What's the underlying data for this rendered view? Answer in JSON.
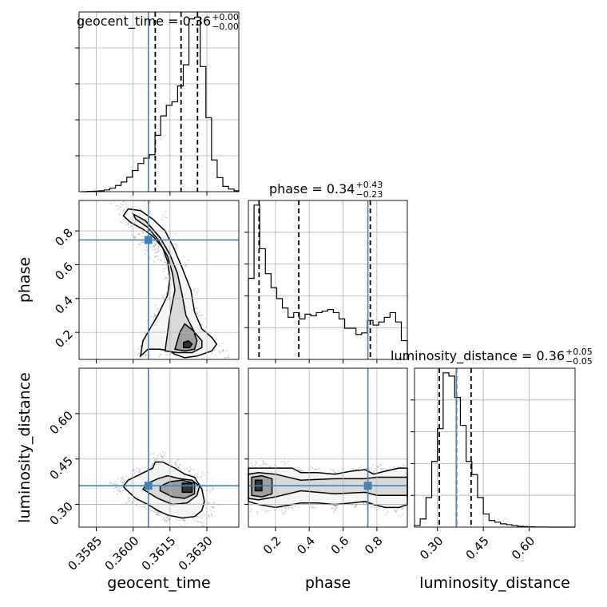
{
  "chart_data": {
    "type": "corner",
    "parameters": [
      "geocent_time",
      "phase",
      "luminosity_distance"
    ],
    "axis_labels": [
      "geocent_time",
      "phase",
      "luminosity_distance"
    ],
    "ranges": {
      "geocent_time": [
        0.3578,
        0.3643
      ],
      "phase": [
        0.04,
        0.98
      ],
      "luminosity_distance": [
        0.225,
        0.75
      ]
    },
    "ticks": {
      "geocent_time": [
        0.3585,
        0.36,
        0.3615,
        0.363
      ],
      "phase": [
        0.2,
        0.4,
        0.6,
        0.8
      ],
      "luminosity_distance": [
        0.3,
        0.45,
        0.6
      ]
    },
    "tick_labels": {
      "geocent_time": [
        "0.3585",
        "0.3600",
        "0.3615",
        "0.3630"
      ],
      "phase": [
        "0.2",
        "0.4",
        "0.6",
        "0.8"
      ],
      "luminosity_distance": [
        "0.30",
        "0.45",
        "0.60"
      ]
    },
    "truths": {
      "geocent_time": 0.36062,
      "phase": 0.7466,
      "luminosity_distance": 0.3616
    },
    "quantiles": {
      "geocent_time": [
        0.3609,
        0.36195,
        0.36262
      ],
      "phase": [
        0.103,
        0.338,
        0.761
      ],
      "luminosity_distance": [
        0.306,
        0.362,
        0.41
      ]
    },
    "titles": [
      {
        "name": "geocent_time",
        "value": "0.36",
        "plus": "+0.00",
        "minus": "−0.00"
      },
      {
        "name": "phase",
        "value": "0.34",
        "plus": "+0.43",
        "minus": "−0.23"
      },
      {
        "name": "luminosity_distance",
        "value": "0.36",
        "plus": "+0.05",
        "minus": "−0.05"
      }
    ],
    "histograms": {
      "geocent_time": {
        "edges": [
          0.3579,
          0.35813,
          0.35836,
          0.35859,
          0.35882,
          0.35905,
          0.35928,
          0.35951,
          0.35974,
          0.35997,
          0.3602,
          0.36043,
          0.36066,
          0.36089,
          0.36112,
          0.36135,
          0.36158,
          0.36181,
          0.36204,
          0.36227,
          0.3625,
          0.36273,
          0.36296,
          0.36319,
          0.36342,
          0.36365,
          0.36388,
          0.36411,
          0.36434
        ],
        "counts": [
          0.0,
          0.2,
          0.3,
          0.5,
          1.0,
          2.0,
          3.5,
          5.5,
          8.2,
          12,
          16,
          19,
          21,
          32,
          43,
          49,
          51,
          60,
          72,
          98,
          99,
          71,
          42,
          18,
          8,
          3,
          1.5,
          0.5
        ]
      },
      "phase": {
        "edges": [
          0.04,
          0.0735,
          0.107,
          0.1405,
          0.174,
          0.2075,
          0.241,
          0.2745,
          0.308,
          0.3415,
          0.375,
          0.4085,
          0.442,
          0.4755,
          0.509,
          0.5425,
          0.576,
          0.6095,
          0.643,
          0.6765,
          0.71,
          0.7435,
          0.777,
          0.8105,
          0.844,
          0.8775,
          0.911,
          0.9445,
          0.98
        ],
        "counts": [
          52,
          99,
          71,
          55,
          46,
          39,
          33,
          27,
          30,
          26,
          29,
          28,
          30,
          31,
          32,
          30,
          26,
          20,
          20,
          16,
          17,
          25,
          22,
          24,
          27,
          30,
          24,
          12
        ]
      },
      "luminosity_distance": {
        "edges": [
          0.225,
          0.2437,
          0.2625,
          0.2812,
          0.3,
          0.3187,
          0.3375,
          0.3562,
          0.375,
          0.3937,
          0.4125,
          0.4312,
          0.45,
          0.4687,
          0.4875,
          0.5062,
          0.525,
          0.5437,
          0.5625,
          0.5812,
          0.6,
          0.6187,
          0.6375,
          0.6562,
          0.675,
          0.6937,
          0.7125,
          0.7312,
          0.75
        ],
        "counts": [
          1,
          5,
          18,
          40,
          60,
          94,
          92,
          79,
          62,
          40,
          32,
          18,
          8,
          4,
          3,
          2,
          1.5,
          1,
          0.5,
          0.3,
          0.2,
          0.1,
          0.05,
          0,
          0,
          0,
          0,
          0
        ]
      }
    },
    "contour_regions": {
      "phase_vs_geocent_time": [
        {
          "level": 0.95,
          "x": [
            0.3603,
            0.3606,
            0.3611,
            0.3615,
            0.3617,
            0.3621,
            0.3626,
            0.3632,
            0.3634,
            0.3632,
            0.3628,
            0.3625,
            0.36235,
            0.362,
            0.36165,
            0.3613,
            0.3608,
            0.3603,
            0.3598,
            0.3596,
            0.3599,
            0.3604,
            0.3608,
            0.3612,
            0.3614,
            0.3615,
            0.3614,
            0.361,
            0.3604
          ],
          "y": [
            0.06,
            0.1,
            0.1,
            0.09,
            0.07,
            0.05,
            0.06,
            0.09,
            0.13,
            0.17,
            0.22,
            0.32,
            0.45,
            0.58,
            0.7,
            0.8,
            0.87,
            0.92,
            0.93,
            0.89,
            0.85,
            0.81,
            0.77,
            0.7,
            0.62,
            0.52,
            0.42,
            0.3,
            0.15
          ]
        },
        {
          "level": 0.68,
          "x": [
            0.3613,
            0.3618,
            0.3624,
            0.3628,
            0.3628,
            0.3625,
            0.36215,
            0.362,
            0.3618,
            0.3615,
            0.3611,
            0.3605,
            0.36,
            0.3601,
            0.3606,
            0.361,
            0.3614,
            0.3616,
            0.3617,
            0.3615
          ],
          "y": [
            0.09,
            0.08,
            0.08,
            0.11,
            0.15,
            0.2,
            0.3,
            0.42,
            0.55,
            0.66,
            0.76,
            0.86,
            0.9,
            0.87,
            0.82,
            0.75,
            0.65,
            0.55,
            0.45,
            0.3
          ]
        },
        {
          "level": 0.39,
          "x": [
            0.3617,
            0.3621,
            0.3625,
            0.3626,
            0.36245,
            0.3621,
            0.3619
          ],
          "y": [
            0.1,
            0.09,
            0.1,
            0.15,
            0.21,
            0.25,
            0.2
          ]
        },
        {
          "level": 0.12,
          "x": [
            0.36205,
            0.3623,
            0.3624,
            0.36225,
            0.36205
          ],
          "y": [
            0.11,
            0.11,
            0.13,
            0.15,
            0.14
          ]
        }
      ],
      "luminosity_distance_vs_geocent_time": [
        {
          "level": 0.95,
          "x": [
            0.3597,
            0.3601,
            0.3606,
            0.361,
            0.3614,
            0.362,
            0.3625,
            0.3628,
            0.3629,
            0.3628,
            0.3625,
            0.3621,
            0.3617,
            0.3612,
            0.3609,
            0.3608,
            0.3603,
            0.3598,
            0.3596
          ],
          "y": [
            0.35,
            0.32,
            0.3,
            0.28,
            0.265,
            0.255,
            0.26,
            0.28,
            0.31,
            0.35,
            0.39,
            0.4,
            0.42,
            0.44,
            0.44,
            0.42,
            0.4,
            0.38,
            0.36
          ]
        },
        {
          "level": 0.68,
          "x": [
            0.3604,
            0.361,
            0.3616,
            0.3622,
            0.3626,
            0.3627,
            0.3624,
            0.3619,
            0.3614,
            0.361,
            0.3606
          ],
          "y": [
            0.35,
            0.32,
            0.3,
            0.305,
            0.33,
            0.36,
            0.38,
            0.385,
            0.395,
            0.385,
            0.37
          ]
        },
        {
          "level": 0.39,
          "x": [
            0.3611,
            0.3616,
            0.3621,
            0.3625,
            0.3625,
            0.362,
            0.3615,
            0.3611
          ],
          "y": [
            0.345,
            0.325,
            0.32,
            0.335,
            0.37,
            0.38,
            0.375,
            0.36
          ]
        },
        {
          "level": 0.12,
          "x": [
            0.362,
            0.3624,
            0.3624,
            0.362
          ],
          "y": [
            0.34,
            0.34,
            0.37,
            0.37
          ]
        }
      ],
      "luminosity_distance_vs_phase": [
        {
          "level": 0.95,
          "x": [
            0.04,
            0.1,
            0.2,
            0.3,
            0.35,
            0.45,
            0.55,
            0.65,
            0.73,
            0.78,
            0.85,
            0.93,
            0.98,
            0.98,
            0.93,
            0.85,
            0.78,
            0.73,
            0.65,
            0.55,
            0.45,
            0.35,
            0.3,
            0.2,
            0.1,
            0.04
          ],
          "y": [
            0.31,
            0.3,
            0.29,
            0.3,
            0.305,
            0.305,
            0.3,
            0.305,
            0.31,
            0.3,
            0.29,
            0.29,
            0.3,
            0.42,
            0.42,
            0.41,
            0.4,
            0.415,
            0.41,
            0.4,
            0.405,
            0.405,
            0.42,
            0.42,
            0.42,
            0.42
          ]
        },
        {
          "level": 0.68,
          "x": [
            0.04,
            0.1,
            0.2,
            0.35,
            0.55,
            0.73,
            0.8,
            0.93,
            0.98,
            0.98,
            0.93,
            0.8,
            0.73,
            0.55,
            0.35,
            0.2,
            0.1,
            0.04
          ],
          "y": [
            0.32,
            0.315,
            0.325,
            0.345,
            0.335,
            0.34,
            0.33,
            0.33,
            0.33,
            0.39,
            0.39,
            0.39,
            0.385,
            0.385,
            0.38,
            0.4,
            0.405,
            0.4
          ]
        },
        {
          "level": 0.39,
          "x": [
            0.06,
            0.12,
            0.18,
            0.18,
            0.12,
            0.06
          ],
          "y": [
            0.33,
            0.325,
            0.335,
            0.385,
            0.395,
            0.39
          ]
        },
        {
          "level": 0.12,
          "x": [
            0.08,
            0.12,
            0.12,
            0.08
          ],
          "y": [
            0.345,
            0.345,
            0.38,
            0.38
          ]
        }
      ]
    },
    "grid": true
  }
}
